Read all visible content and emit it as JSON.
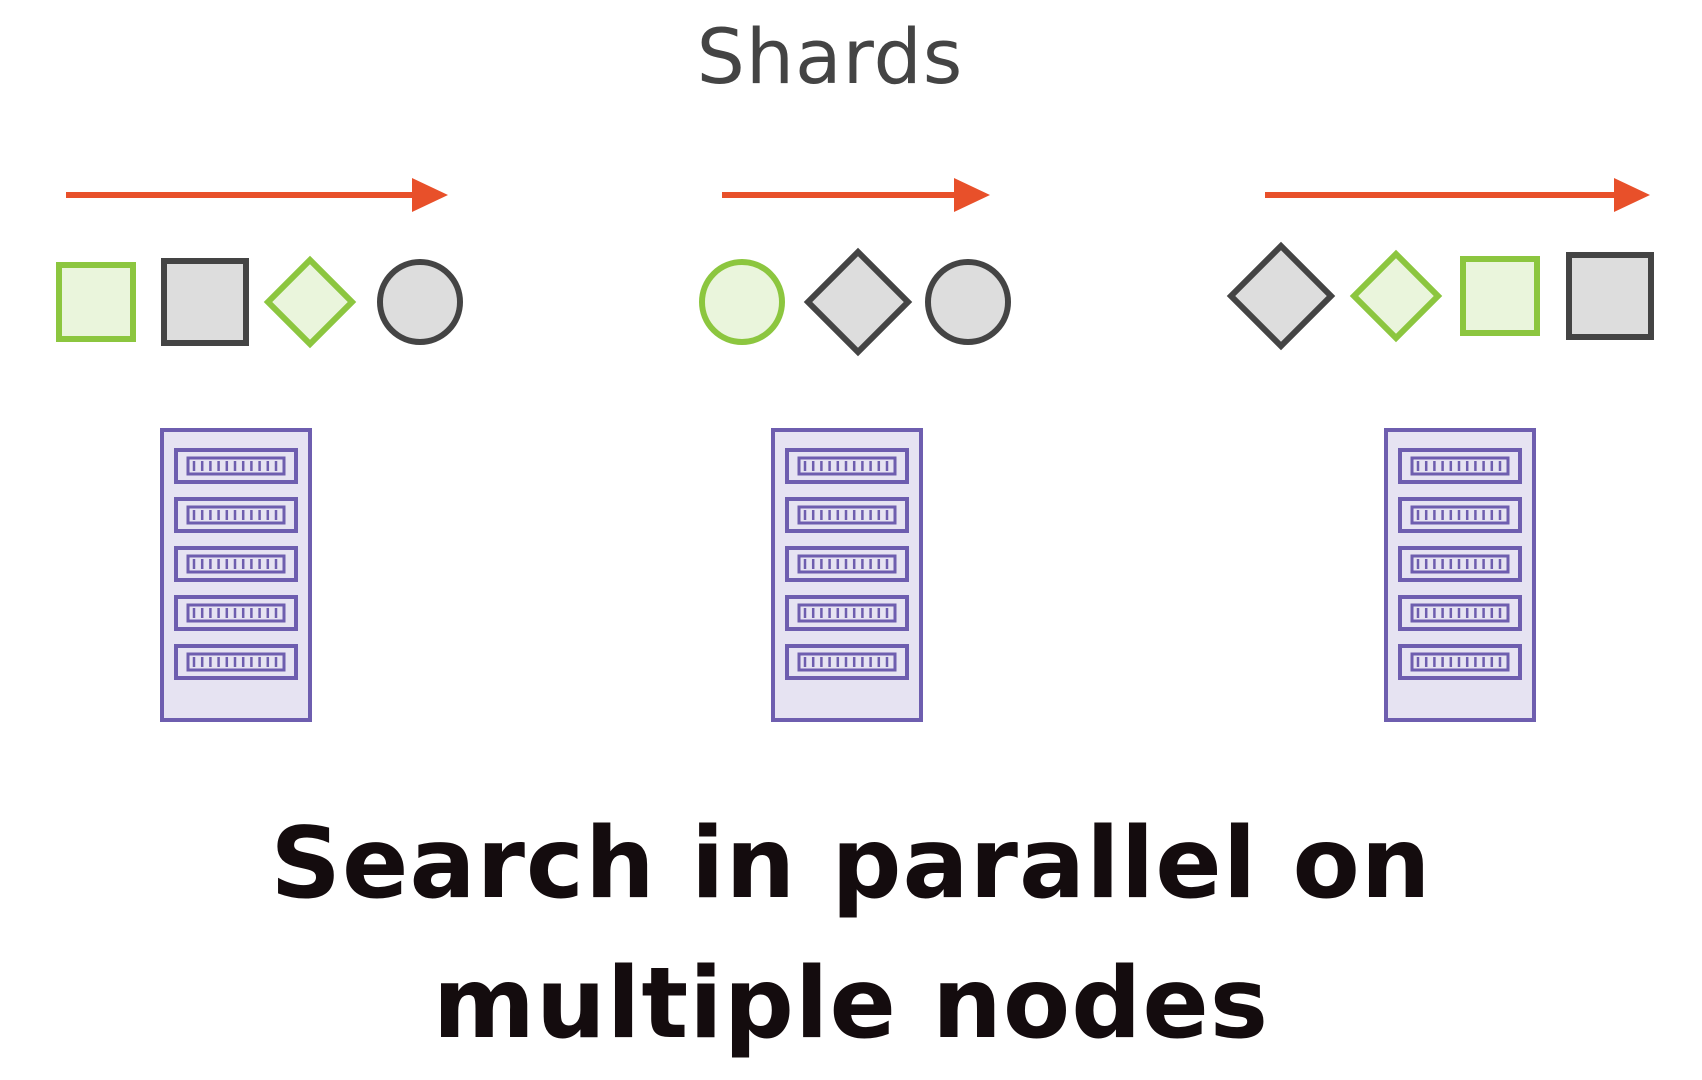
{
  "title": "Shards",
  "caption": {
    "line1": "Search in parallel on",
    "line2": "multiple nodes"
  },
  "colors": {
    "arrow": "#e8502a",
    "green_stroke": "#8cc63f",
    "green_fill": "#eaf5dc",
    "gray_stroke": "#444444",
    "gray_fill": "#dddddd",
    "server_stroke": "#6e5eaf",
    "server_fill": "#e6e3f2",
    "title_text": "#444444",
    "caption_text": "#140c0e"
  },
  "groups": [
    {
      "name": "node-1",
      "shards": [
        {
          "shape": "square",
          "color": "green"
        },
        {
          "shape": "square",
          "color": "gray"
        },
        {
          "shape": "diamond",
          "color": "green"
        },
        {
          "shape": "circle",
          "color": "gray"
        }
      ]
    },
    {
      "name": "node-2",
      "shards": [
        {
          "shape": "circle",
          "color": "green"
        },
        {
          "shape": "diamond",
          "color": "gray"
        },
        {
          "shape": "circle",
          "color": "gray"
        }
      ]
    },
    {
      "name": "node-3",
      "shards": [
        {
          "shape": "diamond",
          "color": "gray"
        },
        {
          "shape": "diamond",
          "color": "green"
        },
        {
          "shape": "square",
          "color": "green"
        },
        {
          "shape": "square",
          "color": "gray"
        }
      ]
    }
  ]
}
